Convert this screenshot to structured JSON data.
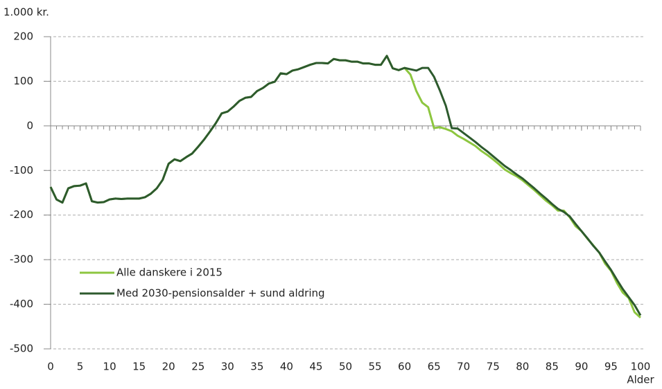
{
  "chart_data": {
    "type": "line",
    "y_label": "1.000 kr.",
    "x_label": "Alder",
    "x": [
      0,
      1,
      2,
      3,
      4,
      5,
      6,
      7,
      8,
      9,
      10,
      11,
      12,
      13,
      14,
      15,
      16,
      17,
      18,
      19,
      20,
      21,
      22,
      23,
      24,
      25,
      26,
      27,
      28,
      29,
      30,
      31,
      32,
      33,
      34,
      35,
      36,
      37,
      38,
      39,
      40,
      41,
      42,
      43,
      44,
      45,
      46,
      47,
      48,
      49,
      50,
      51,
      52,
      53,
      54,
      55,
      56,
      57,
      58,
      59,
      60,
      61,
      62,
      63,
      64,
      65,
      66,
      67,
      68,
      69,
      70,
      71,
      72,
      73,
      74,
      75,
      76,
      77,
      78,
      79,
      80,
      81,
      82,
      83,
      84,
      85,
      86,
      87,
      88,
      89,
      90,
      91,
      92,
      93,
      94,
      95,
      96,
      97,
      98,
      99,
      100
    ],
    "series": [
      {
        "name": "Alle danskere i 2015",
        "color": "#8dc63f",
        "values": [
          -137,
          -165,
          -172,
          -140,
          -135,
          -134,
          -129,
          -169,
          -172,
          -171,
          -165,
          -163,
          -164,
          -163,
          -163,
          -163,
          -160,
          -152,
          -140,
          -121,
          -85,
          -75,
          -79,
          -70,
          -62,
          -47,
          -31,
          -13,
          6,
          28,
          32,
          43,
          56,
          63,
          65,
          78,
          85,
          95,
          99,
          118,
          116,
          124,
          127,
          132,
          137,
          141,
          141,
          140,
          150,
          147,
          147,
          144,
          144,
          140,
          140,
          137,
          137,
          157,
          129,
          125,
          130,
          115,
          78,
          52,
          42,
          -5,
          -3,
          -7,
          -12,
          -22,
          -29,
          -37,
          -45,
          -56,
          -65,
          -75,
          -86,
          -98,
          -106,
          -113,
          -122,
          -133,
          -144,
          -156,
          -168,
          -178,
          -190,
          -190,
          -205,
          -225,
          -236,
          -253,
          -268,
          -284,
          -309,
          -325,
          -352,
          -374,
          -386,
          -418,
          -430
        ]
      },
      {
        "name": "Med 2030-pensionsalder + sund aldring",
        "color": "#2d5a2d",
        "values": [
          -137,
          -165,
          -172,
          -140,
          -135,
          -134,
          -129,
          -169,
          -172,
          -171,
          -165,
          -163,
          -164,
          -163,
          -163,
          -163,
          -160,
          -152,
          -140,
          -121,
          -85,
          -75,
          -79,
          -70,
          -62,
          -47,
          -31,
          -13,
          6,
          28,
          32,
          43,
          56,
          63,
          65,
          78,
          85,
          95,
          99,
          118,
          116,
          124,
          127,
          132,
          137,
          141,
          141,
          140,
          150,
          147,
          147,
          144,
          144,
          140,
          140,
          137,
          137,
          157,
          129,
          125,
          130,
          127,
          124,
          130,
          130,
          110,
          79,
          45,
          -5,
          -6,
          -16,
          -26,
          -36,
          -47,
          -57,
          -68,
          -79,
          -90,
          -99,
          -109,
          -118,
          -129,
          -140,
          -152,
          -163,
          -175,
          -186,
          -193,
          -203,
          -220,
          -236,
          -252,
          -269,
          -284,
          -304,
          -323,
          -345,
          -366,
          -384,
          -402,
          -425
        ]
      }
    ],
    "xlim": [
      0,
      100
    ],
    "xticks": [
      0,
      5,
      10,
      15,
      20,
      25,
      30,
      35,
      40,
      45,
      50,
      55,
      60,
      65,
      70,
      75,
      80,
      85,
      90,
      95,
      100
    ],
    "ylim": [
      -500,
      200
    ],
    "yticks": [
      -500,
      -400,
      -300,
      -200,
      -100,
      0,
      100,
      200
    ],
    "grid": true,
    "legend": "lower left"
  }
}
